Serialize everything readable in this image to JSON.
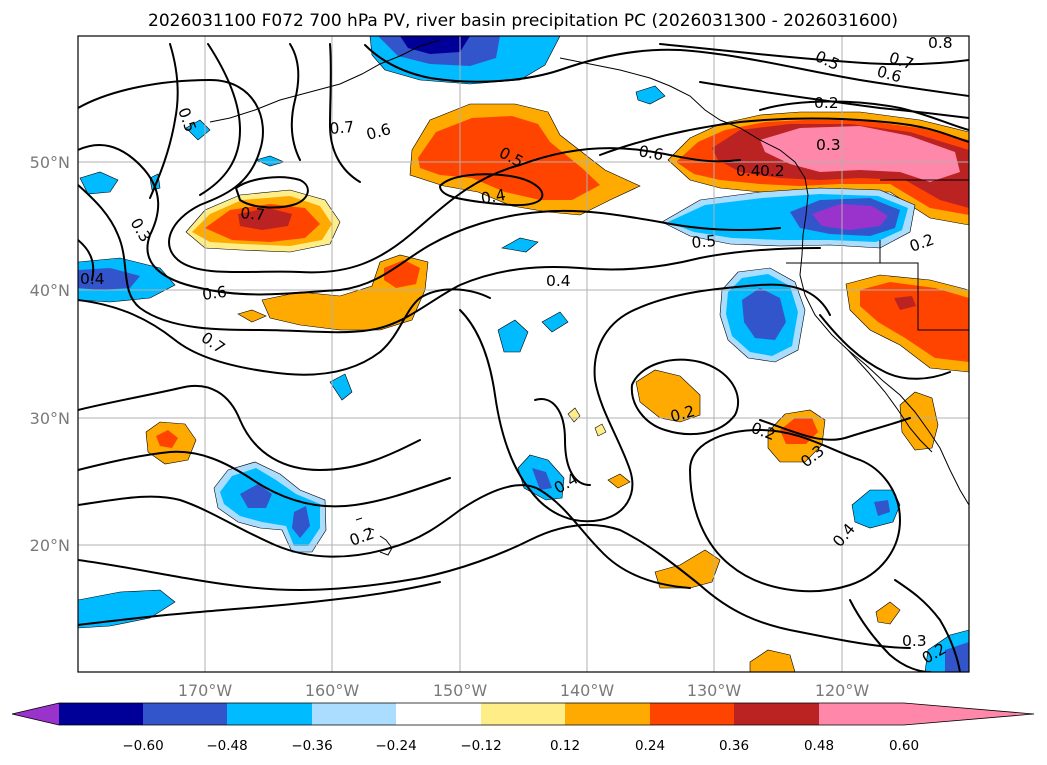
{
  "title": "2026031100 F072 700 hPa PV, river basin precipitation PC (2026031300 - 2026031600)",
  "lon_ticks": [
    "170°W",
    "160°W",
    "150°W",
    "140°W",
    "130°W",
    "120°W"
  ],
  "lat_ticks": [
    "50°N",
    "40°N",
    "30°N",
    "20°N"
  ],
  "colorbar": {
    "tick_labels": [
      "−0.60",
      "−0.48",
      "−0.36",
      "−0.24",
      "−0.12",
      "0.12",
      "0.24",
      "0.36",
      "0.48",
      "0.60"
    ],
    "colors": [
      "#9933cc",
      "#000099",
      "#3355cc",
      "#00bbff",
      "#aaddff",
      "#ffffff",
      "#ffee88",
      "#ffaa00",
      "#ff4400",
      "#bb2222",
      "#ff88aa"
    ]
  },
  "contour_labels": [
    "0.5",
    "0.3",
    "0.4",
    "0.6",
    "0.7",
    "0.7",
    "0.6",
    "0.7",
    "0.5",
    "0.4",
    "0.4",
    "0.6",
    "0.5",
    "0.2",
    "0.3",
    "0.4",
    "0.2",
    "0.8",
    "0.7",
    "0.6",
    "0.5",
    "0.2",
    "0.2",
    "0.3",
    "0.4",
    "0.4",
    "0.2",
    "0.3",
    "0.2",
    "0.2"
  ]
}
